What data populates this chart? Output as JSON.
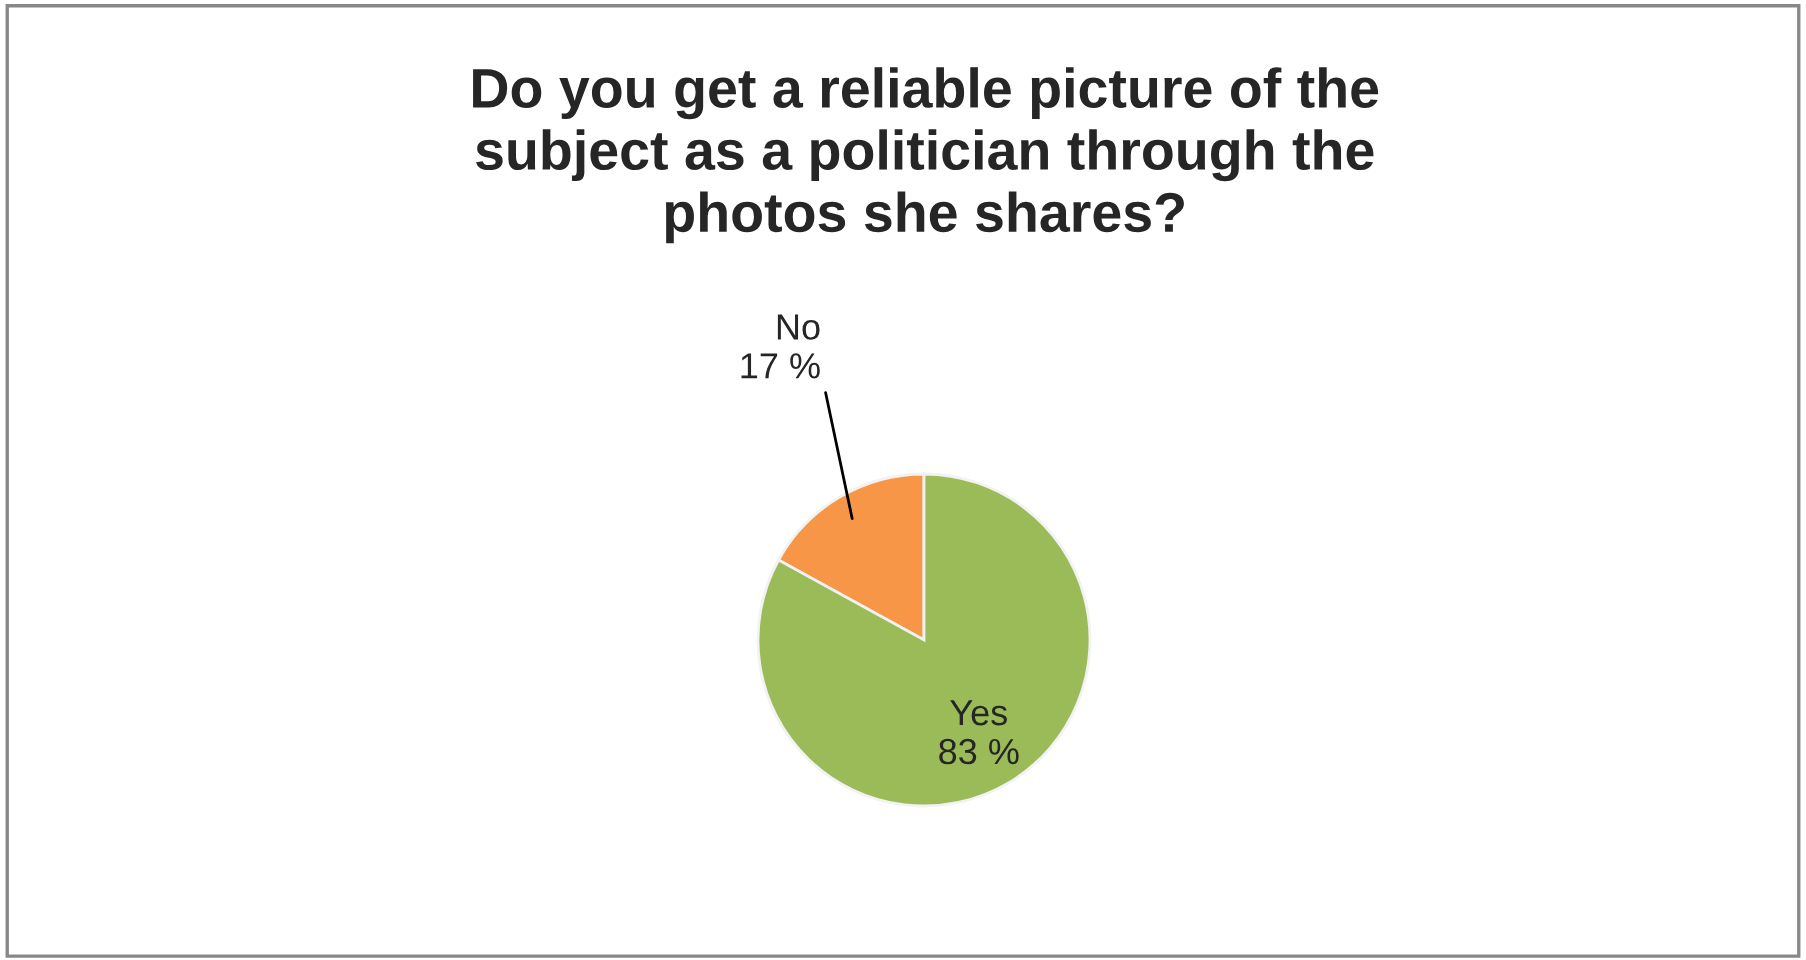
{
  "chart_data": {
    "type": "pie",
    "title": "Do you get a reliable picture of the\nsubject as a politician through the\nphotos she shares?",
    "categories": [
      "No",
      "Yes"
    ],
    "values": [
      17,
      83
    ],
    "colors": [
      "#f79646",
      "#9bbb59"
    ],
    "value_labels": [
      "17 %",
      "83 %"
    ]
  }
}
